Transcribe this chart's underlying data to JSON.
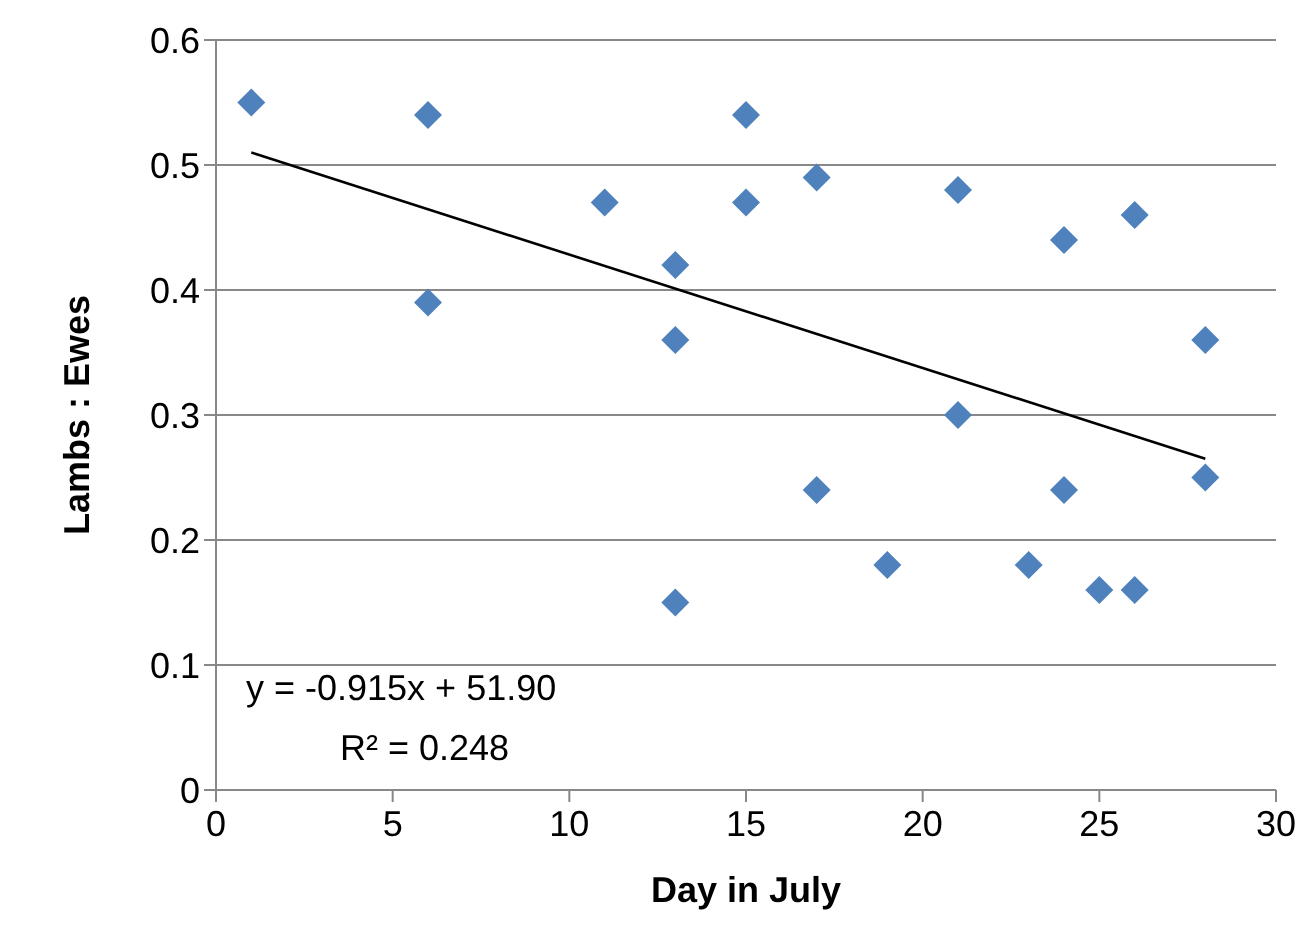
{
  "chart_data": {
    "type": "scatter",
    "xlabel": "Day in July",
    "ylabel": "Lambs : Ewes",
    "xlim": [
      0,
      30
    ],
    "xticks": [
      0,
      5,
      10,
      15,
      20,
      25,
      30
    ],
    "ylim": [
      0,
      0.6
    ],
    "yticks": [
      0,
      0.1,
      0.2,
      0.3,
      0.4,
      0.5,
      0.6
    ],
    "grid": "y",
    "marker": "diamond",
    "series": [
      {
        "color": "#4f81bd",
        "x": [
          1,
          6,
          6,
          11,
          13,
          13,
          13,
          15,
          15,
          17,
          17,
          19,
          21,
          21,
          23,
          24,
          24,
          25,
          26,
          26,
          28,
          28
        ],
        "values": [
          0.55,
          0.54,
          0.39,
          0.47,
          0.42,
          0.36,
          0.15,
          0.54,
          0.47,
          0.49,
          0.24,
          0.18,
          0.48,
          0.3,
          0.18,
          0.44,
          0.24,
          0.16,
          0.46,
          0.16,
          0.36,
          0.25
        ]
      },
      {
        "type": "line",
        "color": "#000000",
        "line_style": "solid",
        "marker": "none",
        "x": [
          1,
          28
        ],
        "values": [
          0.51,
          0.265
        ]
      }
    ],
    "annotations": [
      "y = -0.915x + 51.90",
      "R² = 0.248"
    ]
  }
}
